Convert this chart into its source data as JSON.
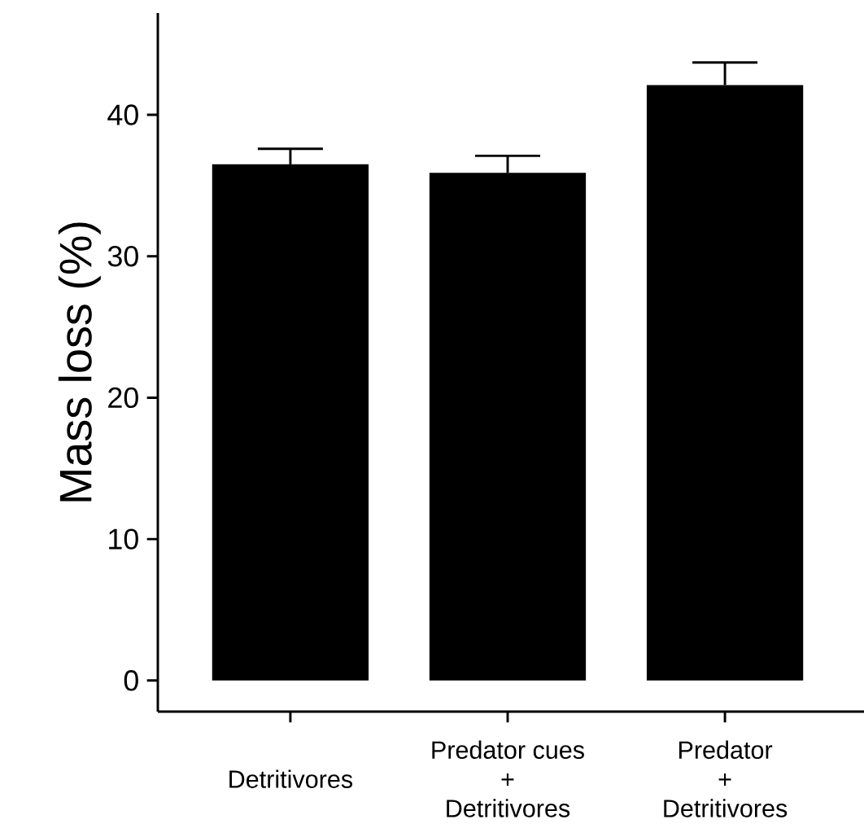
{
  "chart_data": {
    "type": "bar",
    "ylabel": "Mass loss (%)",
    "categories": [
      "Detritivores",
      "Predator cues\n+\nDetritivores",
      "Predator\n+\nDetritivores"
    ],
    "values": [
      36.5,
      35.9,
      42.1
    ],
    "errors": [
      1.1,
      1.2,
      1.6
    ],
    "color": "#000000",
    "ylim": [
      -2.2,
      47.2
    ],
    "yticks": [
      0,
      10,
      20,
      30,
      40
    ],
    "grid": false
  }
}
